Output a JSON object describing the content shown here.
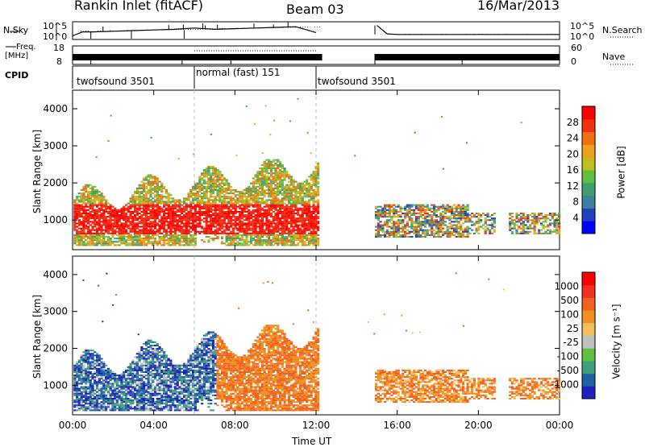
{
  "header": {
    "station": "Rankin Inlet (fitACF)",
    "beam": "Beam 03",
    "date": "16/Mar/2013"
  },
  "labels": {
    "nsky": "N.Sky",
    "nsearch": "N.Search",
    "freq": "Freq.",
    "mhz": "[MHz]",
    "nave": "Nave",
    "cpid": "CPID",
    "time_axis": "Time UT"
  },
  "chart_data": [
    {
      "type": "line",
      "name": "noise-panel",
      "left_axis": {
        "label": "N.Sky",
        "ticks": [
          "10^5",
          "10^0"
        ]
      },
      "right_axis": {
        "label": "N.Search",
        "ticks": [
          "10^5",
          "10^0"
        ]
      },
      "xlim_hours": [
        0,
        24
      ],
      "x": [
        0,
        0.5,
        1,
        2,
        3,
        4,
        5,
        6,
        7,
        8,
        9,
        10,
        11,
        12,
        12.2,
        14.9,
        15,
        15.5,
        16,
        18,
        20,
        22,
        24
      ],
      "y_log10": [
        1.0,
        1.6,
        1.6,
        1.7,
        1.8,
        1.9,
        2.0,
        2.2,
        2.0,
        2.1,
        2.2,
        2.3,
        2.4,
        1.5,
        null,
        null,
        2.6,
        1.3,
        1.2,
        1.2,
        1.2,
        1.2,
        1.2
      ]
    },
    {
      "type": "line",
      "name": "frequency-panel",
      "left_axis": {
        "label": "Freq. [MHz]",
        "ticks": [
          "18",
          "8"
        ],
        "ylim": [
          8,
          18
        ]
      },
      "right_axis": {
        "label": "Nave",
        "ticks": [
          "60",
          "0"
        ],
        "ylim": [
          0,
          60
        ]
      },
      "segments": [
        {
          "x": [
            0,
            6
          ],
          "freq_mhz": [
            10,
            12
          ]
        },
        {
          "x": [
            6,
            12
          ],
          "freq_mhz": [
            11,
            11
          ],
          "nave": [
            30,
            30
          ]
        },
        {
          "x": [
            12,
            12.3
          ],
          "freq_mhz": [
            10,
            12
          ]
        },
        {
          "x": [
            14.9,
            24
          ],
          "freq_mhz": [
            10,
            12
          ]
        }
      ]
    },
    {
      "type": "table",
      "name": "cpid-bar",
      "label": "CPID",
      "segments": [
        {
          "start": 0,
          "end": 6,
          "text": "twofsound 3501"
        },
        {
          "start": 6,
          "end": 12,
          "text": "normal (fast) 151"
        },
        {
          "start": 12,
          "end": 24,
          "text": "twofsound 3501"
        }
      ]
    },
    {
      "type": "heatmap",
      "name": "power",
      "ylabel": "Slant Range [km]",
      "xlabel": "Time UT",
      "ylim": [
        200,
        4500
      ],
      "yticks": [
        1000,
        2000,
        3000,
        4000
      ],
      "xticks": [
        "00:00",
        "04:00",
        "08:00",
        "12:00",
        "16:00",
        "20:00",
        "00:00"
      ],
      "colorbar": {
        "label": "Power [dB]",
        "ticks": [
          "28",
          "24",
          "20",
          "16",
          "12",
          "8",
          "4"
        ],
        "colors": [
          "#0000ff",
          "#2040c0",
          "#3f7f9f",
          "#3f9f6f",
          "#5fbf3f",
          "#bfbf20",
          "#f0a020",
          "#f07010",
          "#f03010",
          "#ff0000"
        ]
      },
      "data_regions": [
        {
          "x": [
            0,
            12
          ],
          "y": [
            300,
            2500
          ],
          "level": "high (20-28 dB) near 700-1300 km"
        },
        {
          "x": [
            14.8,
            19.5
          ],
          "y": [
            500,
            1400
          ],
          "level": "mixed (8-24 dB)"
        },
        {
          "x": [
            19.5,
            24
          ],
          "y": [
            600,
            1200
          ],
          "level": "mixed (8-20 dB)"
        }
      ]
    },
    {
      "type": "heatmap",
      "name": "velocity",
      "ylabel": "Slant Range [km]",
      "xlabel": "Time UT",
      "ylim": [
        200,
        4500
      ],
      "yticks": [
        1000,
        2000,
        3000,
        4000
      ],
      "xticks": [
        "00:00",
        "04:00",
        "08:00",
        "12:00",
        "16:00",
        "20:00",
        "00:00"
      ],
      "colorbar": {
        "label": "Velocity [m s⁻¹]",
        "ticks": [
          "1000",
          "500",
          "100",
          "25",
          "-25",
          "-100",
          "-500",
          "-1000"
        ],
        "colors": [
          "#2020c0",
          "#205fa0",
          "#3f9f7f",
          "#5fbf3f",
          "#c0c0c0",
          "#f0c060",
          "#f09020",
          "#f06020",
          "#f03020",
          "#ff0000"
        ]
      },
      "data_regions": [
        {
          "x": [
            0,
            7
          ],
          "y": [
            300,
            2600
          ],
          "level": "positive (100-1000 m/s), blue/green"
        },
        {
          "x": [
            7,
            12
          ],
          "y": [
            600,
            2600
          ],
          "level": "negative (-100 to -500 m/s), orange"
        },
        {
          "x": [
            14.8,
            24
          ],
          "y": [
            500,
            1400
          ],
          "level": "negative (-100 to -500 m/s), orange"
        }
      ]
    }
  ]
}
